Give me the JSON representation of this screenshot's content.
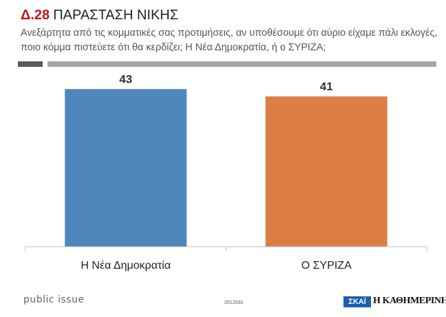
{
  "header": {
    "code": "Δ.28",
    "title": "ΠΑΡΑΣΤΑΣΗ ΝΙΚΗΣ",
    "subtitle": "Ανεξάρτητα από τις κομματικές σας προτιμήσεις, αν υποθέσουμε ότι αύριο είχαμε πάλι εκλογές, ποιο κόμμα πιστεύετε ότι θα κερδίζει; Η Νέα Δημοκρατία, ή ο ΣΥΡΙΖΑ;"
  },
  "colors": {
    "accent_red": "#c0161d",
    "rule_dark": "#595959",
    "rule_light": "#a6a6a6",
    "axis": "#bfbfbf",
    "bar_nd": "#4f87bd",
    "bar_syriza": "#dd7e45"
  },
  "chart_data": {
    "type": "bar",
    "title": "ΠΑΡΑΣΤΑΣΗ ΝΙΚΗΣ",
    "categories": [
      "Η Νέα Δημοκρατία",
      "Ο ΣΥΡΙΖΑ"
    ],
    "values": [
      43,
      41
    ],
    "data_labels": [
      "43",
      "41"
    ],
    "bar_colors": [
      "#4f87bd",
      "#dd7e45"
    ],
    "xlabel": "",
    "ylabel": "",
    "ylim": [
      0,
      47
    ],
    "grid": false,
    "legend": "none"
  },
  "footer": {
    "brand": "public issue",
    "code": "2012030",
    "logo_skai": "ΣΚΑΪ",
    "logo_kathimerini": "Η ΚΑΘΗΜΕΡΙΝΗ"
  }
}
